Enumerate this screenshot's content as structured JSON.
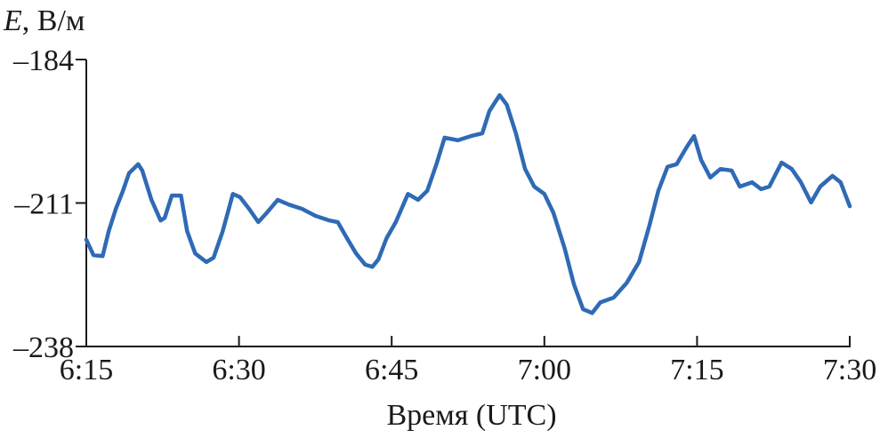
{
  "chart_data": {
    "type": "line",
    "ylabel_symbol": "E",
    "ylabel_unit": ", В/м",
    "xlabel": "Время (UTC)",
    "ylim": [
      -238,
      -184
    ],
    "yticks": [
      "–184",
      "–211",
      "–238"
    ],
    "ytick_values": [
      -184,
      -211,
      -238
    ],
    "xlim": [
      "6:15",
      "7:30"
    ],
    "xticks": [
      "6:15",
      "6:30",
      "6:45",
      "7:00",
      "7:15",
      "7:30"
    ],
    "grid": false,
    "line_color": "#2f6ab5",
    "series": [
      {
        "x": [
          "6:15:00",
          "6:15:42",
          "6:16:36",
          "6:17:12",
          "6:17:54",
          "6:18:36",
          "6:19:12",
          "6:20:06",
          "6:20:30",
          "6:21:24",
          "6:22:18",
          "6:22:42",
          "6:23:24",
          "6:24:18",
          "6:24:54",
          "6:25:42",
          "6:26:48",
          "6:27:30",
          "6:28:24",
          "6:29:24",
          "6:30:06",
          "6:31:00",
          "6:31:54",
          "6:32:42",
          "6:33:48",
          "6:34:54",
          "6:36:12",
          "6:37:30",
          "6:38:54",
          "6:39:42",
          "6:40:36",
          "6:41:30",
          "6:42:24",
          "6:43:06",
          "6:43:42",
          "6:44:30",
          "6:45:24",
          "6:46:36",
          "6:47:36",
          "6:48:30",
          "6:49:24",
          "6:50:12",
          "6:51:30",
          "6:52:48",
          "6:53:54",
          "6:54:36",
          "6:55:36",
          "6:56:18",
          "6:57:12",
          "6:58:06",
          "6:59:00",
          "7:00:00",
          "7:00:54",
          "7:02:00",
          "7:02:54",
          "7:03:48",
          "7:04:42",
          "7:05:30",
          "7:06:48",
          "7:08:06",
          "7:09:18",
          "7:10:18",
          "7:11:12",
          "7:12:06",
          "7:13:00",
          "7:14:00",
          "7:14:42",
          "7:15:24",
          "7:16:18",
          "7:17:18",
          "7:18:24",
          "7:19:12",
          "7:20:24",
          "7:21:18",
          "7:22:06",
          "7:23:18",
          "7:24:18",
          "7:25:12",
          "7:26:12",
          "7:27:06",
          "7:28:18",
          "7:29:06",
          "7:30:00"
        ],
        "y": [
          -217.9,
          -220.8,
          -221.0,
          -216.3,
          -212.1,
          -208.7,
          -205.4,
          -203.7,
          -204.9,
          -210.4,
          -214.3,
          -213.8,
          -209.6,
          -209.6,
          -216.3,
          -220.5,
          -222.1,
          -221.3,
          -216.3,
          -209.3,
          -209.9,
          -212.1,
          -214.6,
          -212.9,
          -210.4,
          -211.3,
          -212.1,
          -213.4,
          -214.3,
          -214.6,
          -217.6,
          -220.5,
          -222.6,
          -223.0,
          -221.6,
          -217.6,
          -214.6,
          -209.3,
          -210.4,
          -208.7,
          -203.7,
          -198.7,
          -199.2,
          -198.4,
          -197.9,
          -193.7,
          -190.7,
          -192.5,
          -197.9,
          -204.6,
          -207.9,
          -209.3,
          -212.9,
          -219.6,
          -226.3,
          -231.0,
          -231.7,
          -229.7,
          -228.8,
          -226.0,
          -222.1,
          -215.4,
          -208.7,
          -204.2,
          -203.7,
          -200.4,
          -198.4,
          -202.9,
          -206.2,
          -204.6,
          -204.9,
          -207.9,
          -207.1,
          -208.4,
          -207.9,
          -203.4,
          -204.6,
          -207.1,
          -210.9,
          -207.9,
          -205.9,
          -207.1,
          -211.6
        ]
      }
    ]
  }
}
